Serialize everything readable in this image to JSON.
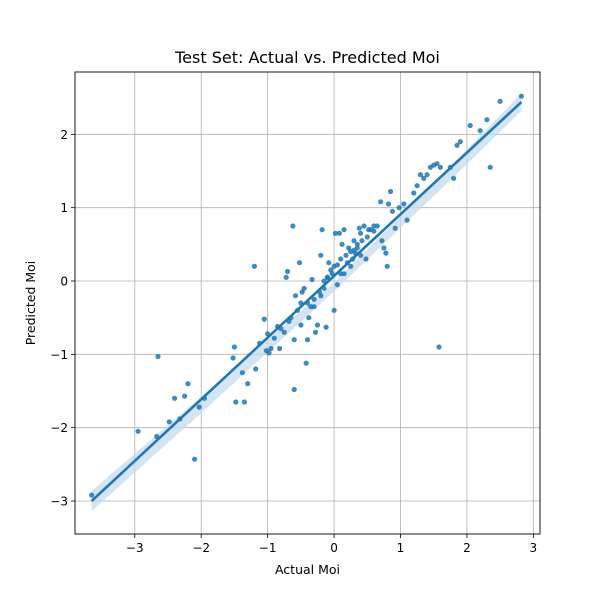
{
  "chart_data": {
    "type": "scatter",
    "title": "Test Set: Actual vs. Predicted Moi",
    "xlabel": "Actual Moi",
    "ylabel": "Predicted Moi",
    "xlim": [
      -3.9,
      3.1
    ],
    "ylim": [
      -3.45,
      2.85
    ],
    "xticks": [
      -3,
      -2,
      -1,
      0,
      1,
      2,
      3
    ],
    "yticks": [
      -3,
      -2,
      -1,
      0,
      1,
      2
    ],
    "xtick_labels": [
      "−3",
      "−2",
      "−1",
      "0",
      "1",
      "2",
      "3"
    ],
    "ytick_labels": [
      "−3",
      "−2",
      "−1",
      "0",
      "1",
      "2"
    ],
    "grid": true,
    "colors": {
      "points": "#1f77b4",
      "fit_line": "#1f77b4",
      "confidence_band": "#c6dbef"
    },
    "regression_line": {
      "x": [
        -3.65,
        2.82
      ],
      "y": [
        -3.0,
        2.44
      ]
    },
    "confidence_band": {
      "x": [
        -3.65,
        -2.0,
        0.0,
        2.0,
        2.82
      ],
      "upper": [
        -2.86,
        -1.58,
        -0.02,
        1.79,
        2.56
      ],
      "lower": [
        -3.14,
        -1.8,
        -0.14,
        1.59,
        2.32
      ]
    },
    "points": {
      "x": [
        -3.65,
        -2.95,
        -2.65,
        -2.67,
        -2.48,
        -2.4,
        -2.32,
        -2.25,
        -2.2,
        -2.1,
        -2.03,
        -1.95,
        -1.52,
        -1.5,
        -1.48,
        -1.38,
        -1.35,
        -1.3,
        -1.2,
        -1.18,
        -1.12,
        -1.05,
        -1.02,
        -1.0,
        -0.98,
        -0.95,
        -0.9,
        -0.85,
        -0.82,
        -0.8,
        -0.75,
        -0.72,
        -0.7,
        -0.68,
        -0.65,
        -0.62,
        -0.6,
        -0.6,
        -0.58,
        -0.55,
        -0.52,
        -0.5,
        -0.48,
        -0.45,
        -0.42,
        -0.4,
        -0.38,
        -0.35,
        -0.33,
        -0.3,
        -0.28,
        -0.25,
        -0.22,
        -0.2,
        -0.18,
        -0.15,
        -0.12,
        -0.1,
        -0.08,
        -0.05,
        -0.03,
        0.0,
        0.02,
        0.05,
        0.08,
        0.1,
        0.12,
        0.15,
        0.18,
        0.2,
        0.22,
        0.25,
        0.28,
        0.3,
        0.32,
        0.35,
        0.38,
        0.4,
        0.42,
        0.45,
        0.48,
        0.5,
        0.52,
        0.55,
        0.6,
        0.65,
        0.7,
        0.72,
        0.75,
        0.78,
        0.8,
        0.82,
        0.85,
        0.88,
        0.92,
        0.98,
        1.05,
        1.1,
        1.2,
        1.25,
        1.3,
        1.35,
        1.4,
        1.45,
        1.5,
        1.55,
        1.6,
        1.58,
        1.75,
        1.8,
        1.85,
        1.9,
        2.05,
        2.2,
        2.3,
        2.35,
        2.5,
        2.82,
        0.05,
        0.1,
        -0.2,
        0.3,
        -0.4,
        0.25,
        -0.1,
        0.15,
        -0.5,
        0.0,
        0.4,
        0.6,
        -0.3,
        0.35,
        -0.15
      ],
      "y": [
        -2.92,
        -2.05,
        -1.03,
        -2.12,
        -1.92,
        -1.6,
        -1.88,
        -1.57,
        -1.4,
        -2.43,
        -1.72,
        -1.6,
        -1.05,
        -0.9,
        -1.65,
        -1.25,
        -1.65,
        -1.4,
        0.2,
        -1.2,
        -0.85,
        -0.52,
        -0.95,
        -0.72,
        -0.98,
        -0.92,
        -0.78,
        -0.62,
        -0.92,
        -0.65,
        -0.7,
        0.05,
        0.13,
        -0.55,
        -0.5,
        0.75,
        -1.48,
        -0.8,
        -0.2,
        -0.4,
        0.25,
        -0.3,
        -0.15,
        -0.1,
        -1.12,
        -0.8,
        -0.5,
        -0.35,
        0.02,
        -0.25,
        -0.7,
        -0.6,
        -0.15,
        0.35,
        0.7,
        0.0,
        -0.63,
        0.05,
        0.25,
        0.15,
        0.1,
        0.2,
        0.65,
        0.22,
        0.65,
        0.1,
        0.5,
        0.7,
        0.35,
        0.25,
        0.45,
        0.4,
        0.3,
        0.55,
        0.38,
        0.5,
        0.72,
        0.65,
        0.55,
        0.75,
        0.3,
        0.6,
        0.7,
        0.7,
        0.68,
        0.75,
        1.08,
        0.55,
        0.45,
        0.38,
        0.2,
        1.05,
        1.22,
        0.95,
        0.72,
        1.0,
        1.05,
        0.83,
        1.2,
        1.3,
        1.45,
        1.4,
        1.45,
        1.55,
        1.58,
        1.6,
        1.55,
        -0.9,
        1.55,
        1.4,
        1.85,
        1.9,
        2.12,
        2.05,
        2.2,
        1.55,
        2.45,
        2.52,
        -0.05,
        0.3,
        -0.2,
        0.42,
        -0.3,
        0.2,
        0.05,
        0.1,
        -0.6,
        -0.4,
        0.35,
        0.75,
        -0.35,
        0.45,
        -0.1
      ]
    }
  }
}
